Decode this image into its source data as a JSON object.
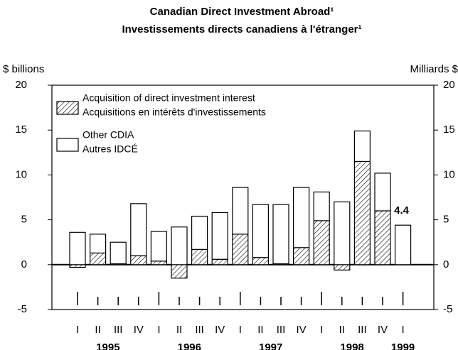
{
  "chart_data": {
    "type": "stacked_bar",
    "title": "Canadian Direct Investment Abroad¹",
    "subtitle": "Investissements directs canadiens à l'étranger¹",
    "y_label": "$ billions",
    "y2_label": "Milliards $",
    "categories": [
      "I",
      "II",
      "III",
      "IV",
      "I",
      "II",
      "III",
      "IV",
      "I",
      "II",
      "III",
      "IV",
      "I",
      "II",
      "III",
      "IV",
      "I"
    ],
    "year_labels": [
      "1995",
      null,
      null,
      null,
      "1996",
      null,
      null,
      null,
      "1997",
      null,
      null,
      null,
      "1998",
      null,
      null,
      null,
      "1999"
    ],
    "series": [
      {
        "name": "Acquisition of direct investment interest",
        "name_fr": "Acquisitions en intérêts d'investissements",
        "pattern": "hatch",
        "color": "#000000",
        "values": [
          -0.3,
          1.3,
          0.1,
          1.0,
          0.4,
          -1.5,
          1.7,
          0.6,
          3.4,
          0.8,
          0.1,
          1.9,
          4.9,
          -0.6,
          11.5,
          6.0,
          null
        ]
      },
      {
        "name": "Other CDIA",
        "name_fr": "Autres IDCÉ",
        "pattern": "none",
        "color": "#ffffff",
        "values": [
          3.6,
          2.1,
          2.4,
          5.8,
          3.3,
          4.2,
          3.7,
          5.2,
          5.2,
          5.9,
          6.6,
          6.7,
          3.2,
          7.0,
          3.4,
          4.2,
          4.4
        ],
        "value_labels": [
          null,
          null,
          null,
          null,
          null,
          null,
          null,
          null,
          null,
          null,
          null,
          null,
          null,
          null,
          null,
          null,
          "4.4"
        ]
      }
    ],
    "ylim": [
      -5,
      20
    ],
    "yticks": [
      -5,
      0,
      5,
      10,
      15,
      20
    ],
    "y2lim": [
      -5,
      20
    ],
    "y2ticks": [
      -5,
      0,
      5,
      10,
      15,
      20
    ]
  }
}
